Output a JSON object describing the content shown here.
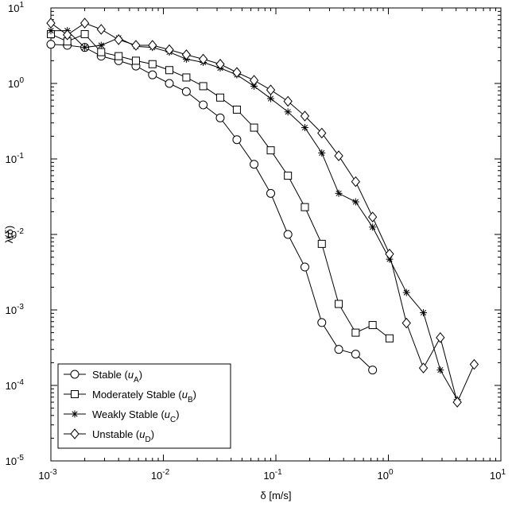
{
  "chart_data": {
    "type": "line",
    "xscale": "log",
    "yscale": "log",
    "xlim": [
      0.001,
      10
    ],
    "ylim": [
      1e-05,
      10
    ],
    "xlabel": "δ [m/s]",
    "ylabel": "λ(δ)",
    "legend_position": "lower-left",
    "x_ticks": [
      {
        "value": 0.001,
        "base": "10",
        "exp": "-3"
      },
      {
        "value": 0.01,
        "base": "10",
        "exp": "-2"
      },
      {
        "value": 0.1,
        "base": "10",
        "exp": "-1"
      },
      {
        "value": 1,
        "base": "10",
        "exp": "0"
      },
      {
        "value": 10,
        "base": "10",
        "exp": "1"
      }
    ],
    "y_ticks": [
      {
        "value": 1e-05,
        "base": "10",
        "exp": "-5"
      },
      {
        "value": 0.0001,
        "base": "10",
        "exp": "-4"
      },
      {
        "value": 0.001,
        "base": "10",
        "exp": "-3"
      },
      {
        "value": 0.01,
        "base": "10",
        "exp": "-2"
      },
      {
        "value": 0.1,
        "base": "10",
        "exp": "-1"
      },
      {
        "value": 1,
        "base": "10",
        "exp": "0"
      },
      {
        "value": 10,
        "base": "10",
        "exp": "1"
      }
    ],
    "series": [
      {
        "name": "Stable (uA)",
        "label_main": "Stable (",
        "label_var": "u",
        "label_sub": "A",
        "label_end": ")",
        "marker": "circle",
        "x": [
          0.001,
          0.0014,
          0.002,
          0.0028,
          0.004,
          0.0057,
          0.008,
          0.0113,
          0.016,
          0.0226,
          0.032,
          0.045,
          0.064,
          0.09,
          0.128,
          0.181,
          0.256,
          0.362,
          0.512,
          0.724
        ],
        "y": [
          3.3,
          3.2,
          3.0,
          2.3,
          2.0,
          1.7,
          1.3,
          1.0,
          0.78,
          0.52,
          0.35,
          0.18,
          0.085,
          0.035,
          0.01,
          0.0037,
          0.00068,
          0.0003,
          0.00026,
          0.00016
        ]
      },
      {
        "name": "Moderately Stable (uB)",
        "label_main": "Moderately Stable (",
        "label_var": "u",
        "label_sub": "B",
        "label_end": ")",
        "marker": "square",
        "x": [
          0.001,
          0.0014,
          0.002,
          0.0028,
          0.004,
          0.0057,
          0.008,
          0.0113,
          0.016,
          0.0226,
          0.032,
          0.045,
          0.064,
          0.09,
          0.128,
          0.181,
          0.256,
          0.362,
          0.512,
          0.724,
          1.024
        ],
        "y": [
          4.5,
          3.6,
          4.5,
          2.6,
          2.3,
          2.0,
          1.8,
          1.5,
          1.2,
          0.92,
          0.65,
          0.45,
          0.26,
          0.13,
          0.06,
          0.023,
          0.0075,
          0.0012,
          0.0005,
          0.00063,
          0.00042
        ]
      },
      {
        "name": "Weakly Stable (uC)",
        "label_main": "Weakly Stable (",
        "label_var": "u",
        "label_sub": "C",
        "label_end": ")",
        "marker": "star",
        "x": [
          0.001,
          0.0014,
          0.002,
          0.0028,
          0.004,
          0.0057,
          0.008,
          0.0113,
          0.016,
          0.0226,
          0.032,
          0.045,
          0.064,
          0.09,
          0.128,
          0.181,
          0.256,
          0.362,
          0.512,
          0.724,
          1.024,
          1.448,
          2.048,
          2.896,
          4.096
        ],
        "y": [
          5.0,
          5.0,
          3.0,
          3.2,
          4.0,
          3.1,
          3.0,
          2.6,
          2.1,
          1.9,
          1.6,
          1.3,
          0.92,
          0.63,
          0.42,
          0.26,
          0.12,
          0.035,
          0.027,
          0.0125,
          0.0047,
          0.0017,
          0.00092,
          0.00016,
          6.5e-05
        ]
      },
      {
        "name": "Unstable (uD)",
        "label_main": "Unstable (",
        "label_var": "u",
        "label_sub": "D",
        "label_end": ")",
        "marker": "diamond",
        "x": [
          0.001,
          0.0014,
          0.002,
          0.0028,
          0.004,
          0.0057,
          0.008,
          0.0113,
          0.016,
          0.0226,
          0.032,
          0.045,
          0.064,
          0.09,
          0.128,
          0.181,
          0.256,
          0.362,
          0.512,
          0.724,
          1.024,
          1.448,
          2.048,
          2.896,
          4.096,
          5.792
        ],
        "y": [
          6.3,
          4.4,
          6.3,
          5.2,
          3.8,
          3.2,
          3.2,
          2.8,
          2.4,
          2.1,
          1.8,
          1.4,
          1.1,
          0.82,
          0.58,
          0.37,
          0.22,
          0.11,
          0.05,
          0.017,
          0.0055,
          0.00067,
          0.00017,
          0.00043,
          6e-05,
          0.00019
        ]
      }
    ]
  }
}
